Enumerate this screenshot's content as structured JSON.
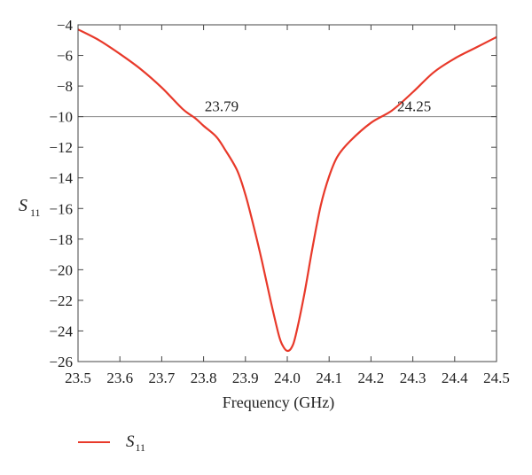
{
  "chart_data": {
    "type": "line",
    "xlabel": "Frequency (GHz)",
    "ylabel": {
      "main": "S",
      "sub": "11"
    },
    "xlim": [
      23.5,
      24.5
    ],
    "ylim": [
      -26,
      -4
    ],
    "xticks": [
      23.5,
      23.6,
      23.7,
      23.8,
      23.9,
      24.0,
      24.1,
      24.2,
      24.3,
      24.4,
      24.5
    ],
    "xtick_labels": [
      "23.5",
      "23.6",
      "23.7",
      "23.8",
      "23.9",
      "24.0",
      "24.1",
      "24.2",
      "24.3",
      "24.4",
      "24.5"
    ],
    "yticks": [
      -4,
      -6,
      -8,
      -10,
      -12,
      -14,
      -16,
      -18,
      -20,
      -22,
      -24,
      -26
    ],
    "ytick_labels": [
      "−4",
      "−6",
      "−8",
      "−10",
      "−12",
      "−14",
      "−16",
      "−18",
      "−20",
      "−22",
      "−24",
      "−26"
    ],
    "grid": false,
    "legend_position": "bottom-left",
    "reference_line": {
      "y": -10,
      "color": "#888888"
    },
    "annotations": [
      {
        "text": "23.79",
        "x": 23.79,
        "y": -10
      },
      {
        "text": "24.25",
        "x": 24.25,
        "y": -10
      }
    ],
    "series": [
      {
        "name": "S11",
        "label_main": "S",
        "label_sub": "11",
        "color": "#e8392a",
        "x": [
          23.5,
          23.55,
          23.6,
          23.65,
          23.7,
          23.75,
          23.78,
          23.8,
          23.83,
          23.85,
          23.88,
          23.9,
          23.92,
          23.94,
          23.96,
          23.98,
          23.99,
          24.0,
          24.01,
          24.02,
          24.04,
          24.06,
          24.08,
          24.1,
          24.12,
          24.15,
          24.2,
          24.25,
          24.3,
          24.35,
          24.4,
          24.45,
          24.5
        ],
        "y": [
          -4.3,
          -5.0,
          -5.9,
          -6.9,
          -8.1,
          -9.5,
          -10.1,
          -10.6,
          -11.3,
          -12.1,
          -13.5,
          -15.1,
          -17.2,
          -19.5,
          -22.0,
          -24.3,
          -25.0,
          -25.3,
          -25.1,
          -24.3,
          -21.7,
          -18.6,
          -15.8,
          -13.9,
          -12.6,
          -11.6,
          -10.4,
          -9.6,
          -8.4,
          -7.1,
          -6.2,
          -5.5,
          -4.8
        ]
      }
    ]
  }
}
